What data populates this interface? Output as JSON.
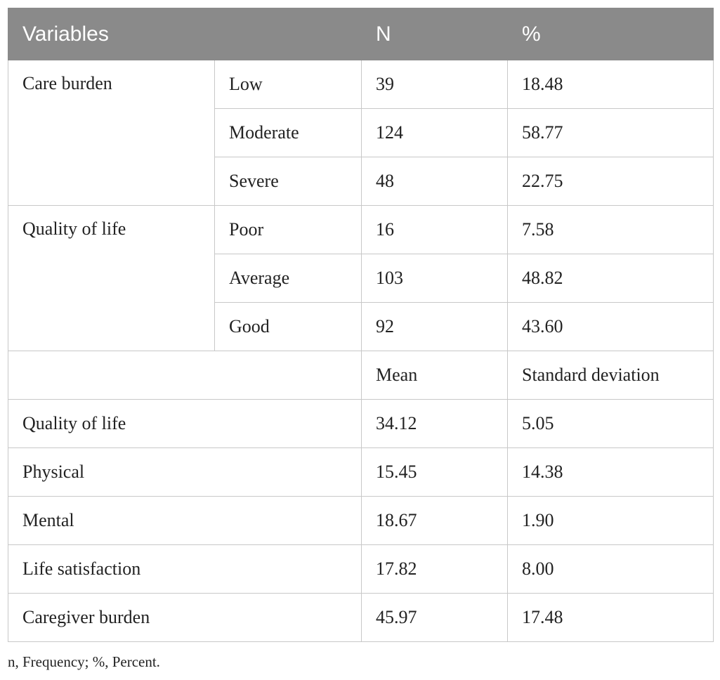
{
  "header": {
    "variables": "Variables",
    "n": "N",
    "percent": "%"
  },
  "care_burden": {
    "label": "Care burden",
    "rows": [
      {
        "level": "Low",
        "n": "39",
        "pct": "18.48"
      },
      {
        "level": "Moderate",
        "n": "124",
        "pct": "58.77"
      },
      {
        "level": "Severe",
        "n": "48",
        "pct": "22.75"
      }
    ]
  },
  "quality_of_life": {
    "label": "Quality of life",
    "rows": [
      {
        "level": "Poor",
        "n": "16",
        "pct": "7.58"
      },
      {
        "level": "Average",
        "n": "103",
        "pct": "48.82"
      },
      {
        "level": "Good",
        "n": "92",
        "pct": "43.60"
      }
    ]
  },
  "subheader": {
    "mean": "Mean",
    "sd": "Standard deviation"
  },
  "stats": [
    {
      "name": "Quality of life",
      "mean": "34.12",
      "sd": "5.05"
    },
    {
      "name": "Physical",
      "mean": "15.45",
      "sd": "14.38"
    },
    {
      "name": "Mental",
      "mean": "18.67",
      "sd": "1.90"
    },
    {
      "name": "Life satisfaction",
      "mean": "17.82",
      "sd": "8.00"
    },
    {
      "name": "Caregiver burden",
      "mean": "45.97",
      "sd": "17.48"
    }
  ],
  "footnote": "n, Frequency; %, Percent."
}
